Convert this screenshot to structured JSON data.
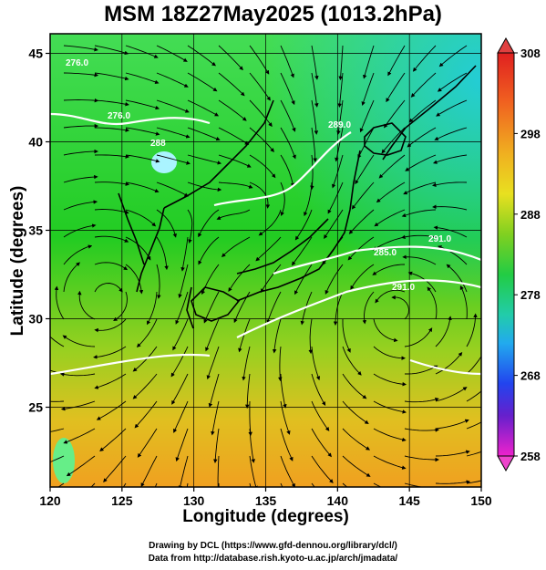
{
  "title": "MSM 18Z27May2025 (1013.2hPa)",
  "x_axis_label": "Longitude (degrees)",
  "y_axis_label": "Latitude  (degrees)",
  "x_ticks": [
    "120",
    "125",
    "130",
    "135",
    "140",
    "145",
    "150"
  ],
  "y_ticks": [
    "25",
    "30",
    "35",
    "40",
    "45"
  ],
  "colorbar_ticks": [
    "308",
    "298",
    "288",
    "278",
    "268",
    "258"
  ],
  "contour_labels": [
    "276.0",
    "276.0",
    "288",
    "289.0",
    "285.0",
    "291.0",
    "291.0"
  ],
  "credits": {
    "line1": "Drawing by DCL (https://www.gfd‐dennou.org/library/dcl/)",
    "line2": "Data from http://database.rish.kyoto‐u.ac.jp/arch/jmadata/"
  },
  "colors": {
    "warm": "#e8b020",
    "mid": "#33cc33",
    "cool": "#22ccdd",
    "streamline": "#000000",
    "contour": "#ffffff"
  }
}
